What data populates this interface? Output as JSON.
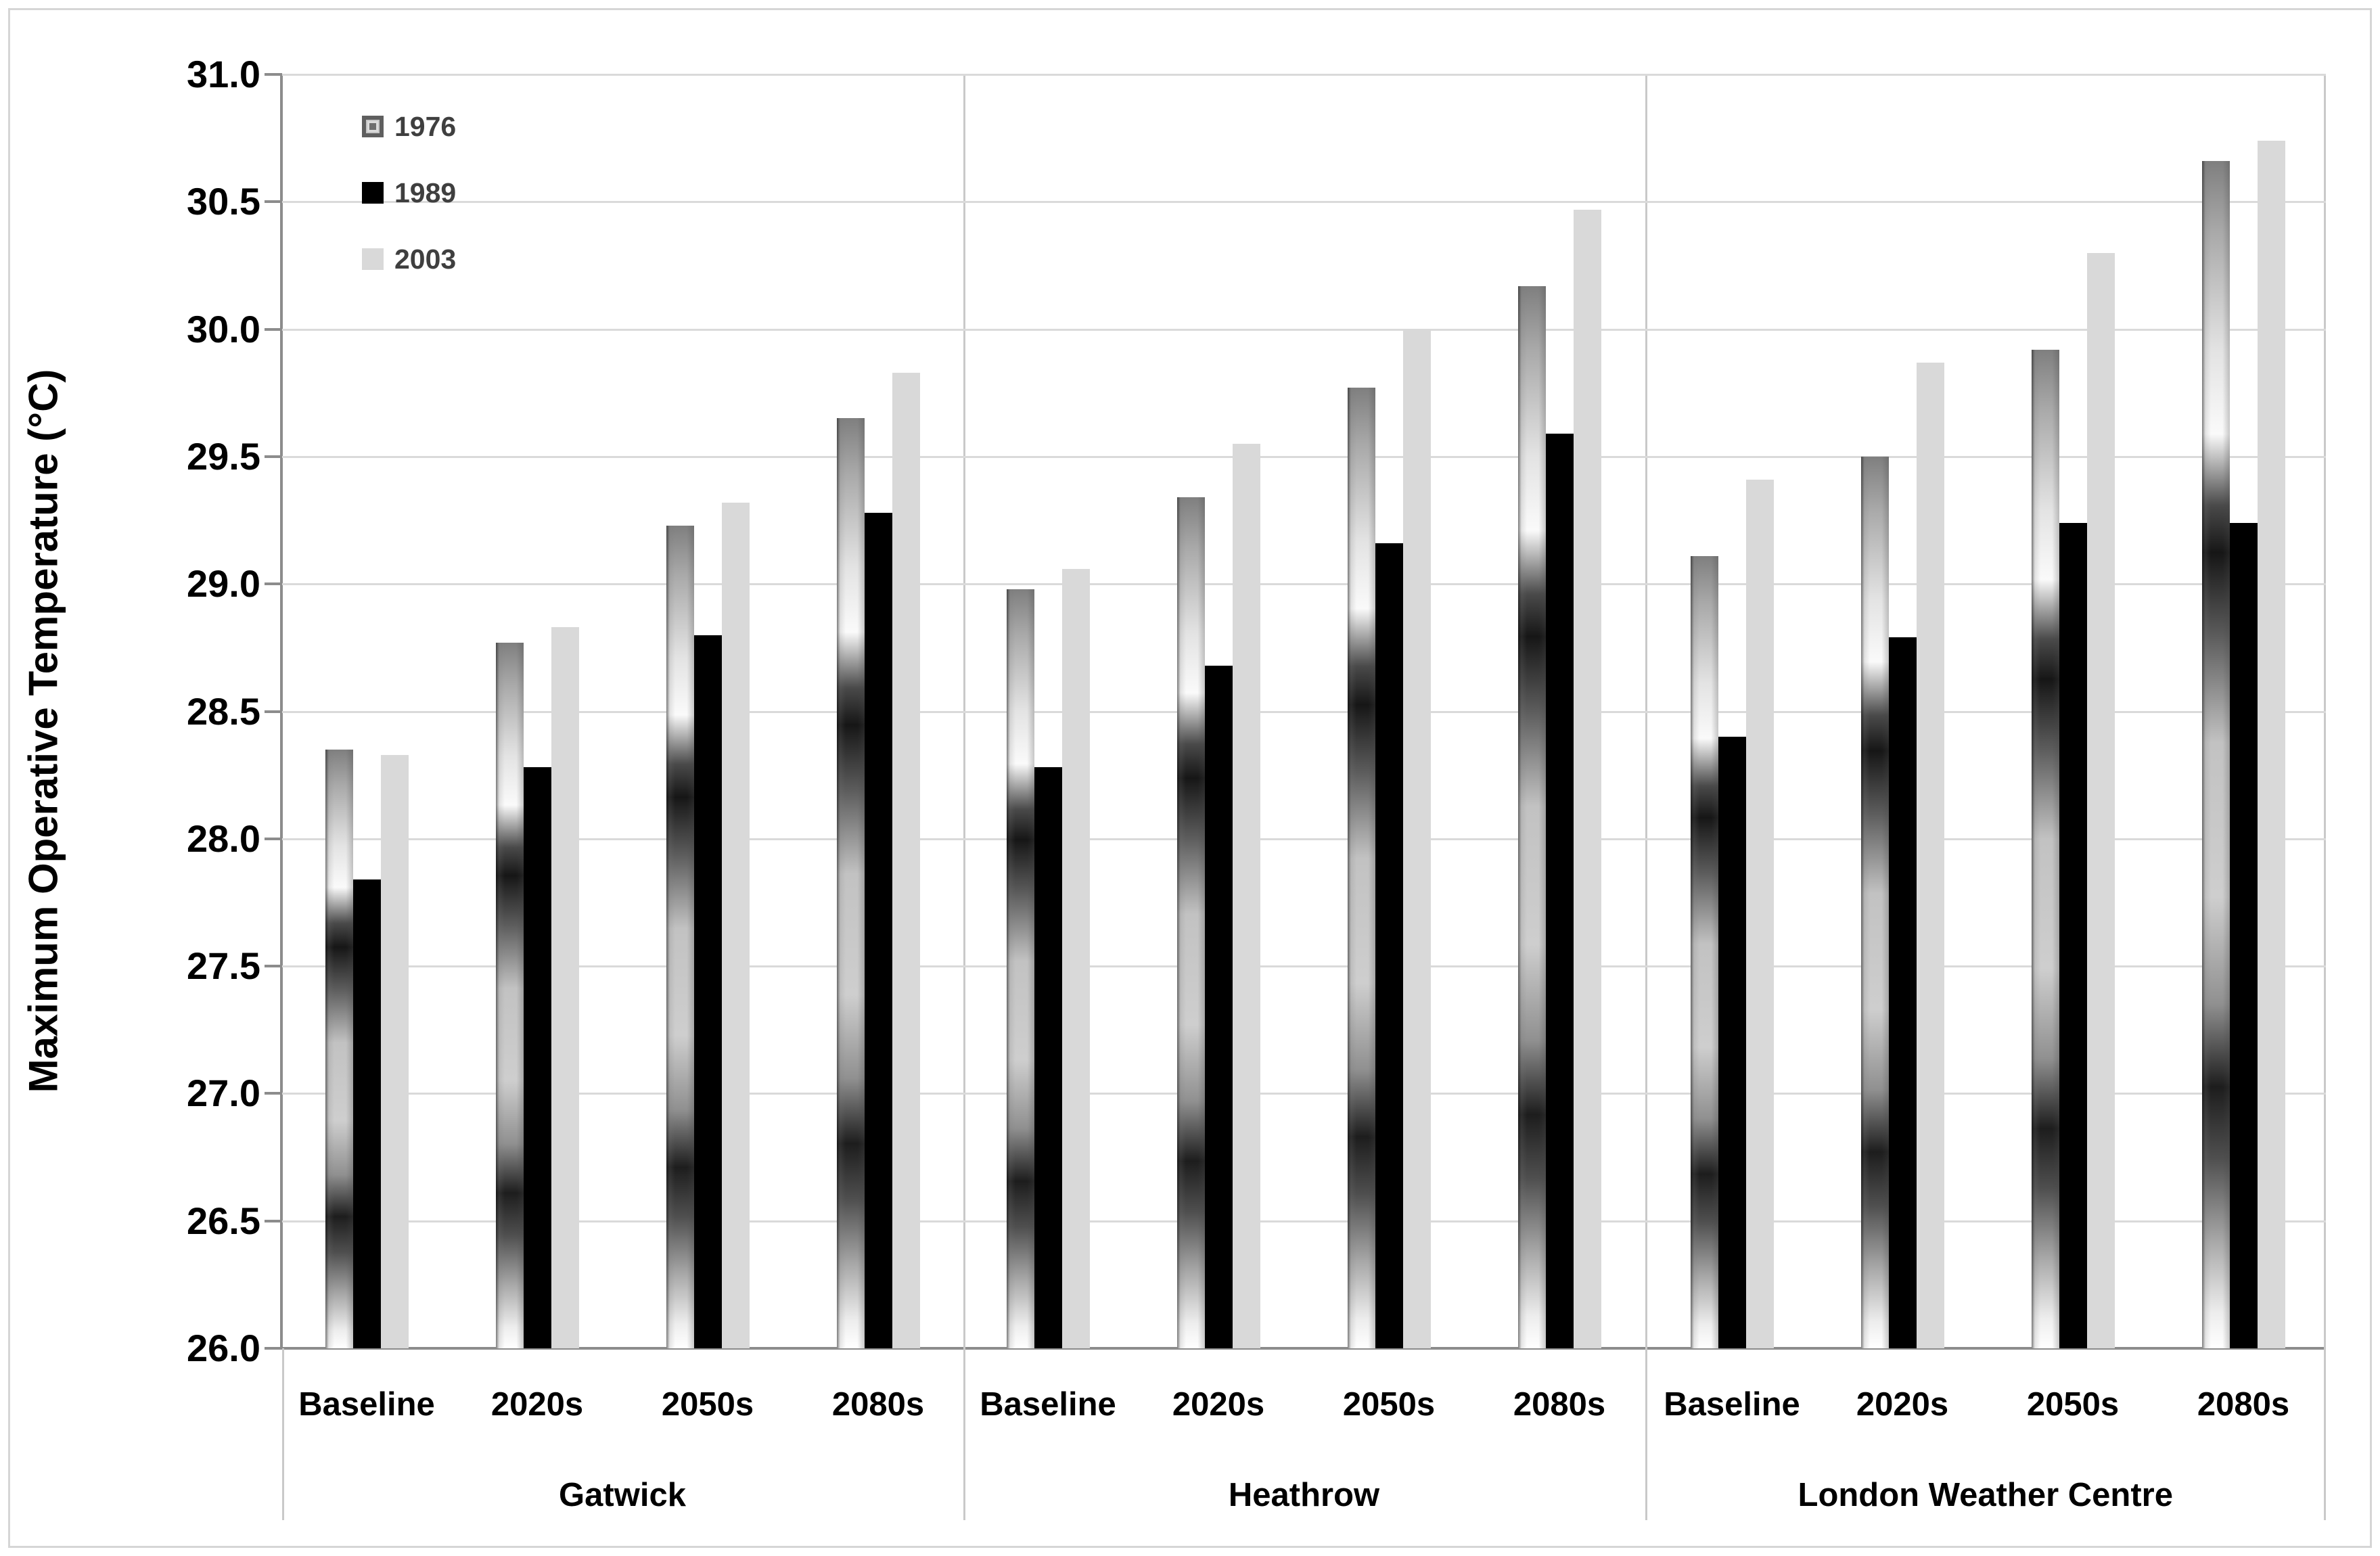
{
  "chart_data": {
    "type": "bar",
    "title": "",
    "ylabel": "Maximum Operative Temperature (°C)",
    "xlabel": "",
    "ylim": [
      26.0,
      31.0
    ],
    "ytick_step": 0.5,
    "grid": "horizontal",
    "legend_position": "inside-top-left",
    "series_names": [
      "1976",
      "1989",
      "2003"
    ],
    "groups": [
      {
        "name": "Gatwick",
        "categories": [
          "Baseline",
          "2020s",
          "2050s",
          "2080s"
        ],
        "series": [
          {
            "name": "1976",
            "values": [
              28.35,
              28.77,
              29.23,
              29.65
            ]
          },
          {
            "name": "1989",
            "values": [
              27.84,
              28.28,
              28.8,
              29.28
            ]
          },
          {
            "name": "2003",
            "values": [
              28.33,
              28.83,
              29.32,
              29.83
            ]
          }
        ]
      },
      {
        "name": "Heathrow",
        "categories": [
          "Baseline",
          "2020s",
          "2050s",
          "2080s"
        ],
        "series": [
          {
            "name": "1976",
            "values": [
              28.98,
              29.34,
              29.77,
              30.17
            ]
          },
          {
            "name": "1989",
            "values": [
              28.28,
              28.68,
              29.16,
              29.59
            ]
          },
          {
            "name": "2003",
            "values": [
              29.06,
              29.55,
              30.0,
              30.47
            ]
          }
        ]
      },
      {
        "name": "London Weather Centre",
        "categories": [
          "Baseline",
          "2020s",
          "2050s",
          "2080s"
        ],
        "series": [
          {
            "name": "1976",
            "values": [
              29.11,
              29.5,
              29.92,
              30.66
            ]
          },
          {
            "name": "1989",
            "values": [
              28.4,
              28.79,
              29.24,
              29.24
            ]
          },
          {
            "name": "2003",
            "values": [
              29.41,
              29.87,
              30.3,
              30.74
            ]
          }
        ]
      }
    ]
  },
  "legend": {
    "items": [
      {
        "label": "1976",
        "swatch": "textured-gray-gradient"
      },
      {
        "label": "1989",
        "swatch": "black"
      },
      {
        "label": "2003",
        "swatch": "light-gray"
      }
    ]
  },
  "colors": {
    "series_1989": "#000000",
    "series_2003": "#d9d9d9",
    "series_1976_base": "#bfbfbf",
    "gridline": "#dadada",
    "axis": "#8c8c8c",
    "divider": "#c9c9c9",
    "tick_label": "#000000",
    "legend_text": "#3f3f3f"
  }
}
